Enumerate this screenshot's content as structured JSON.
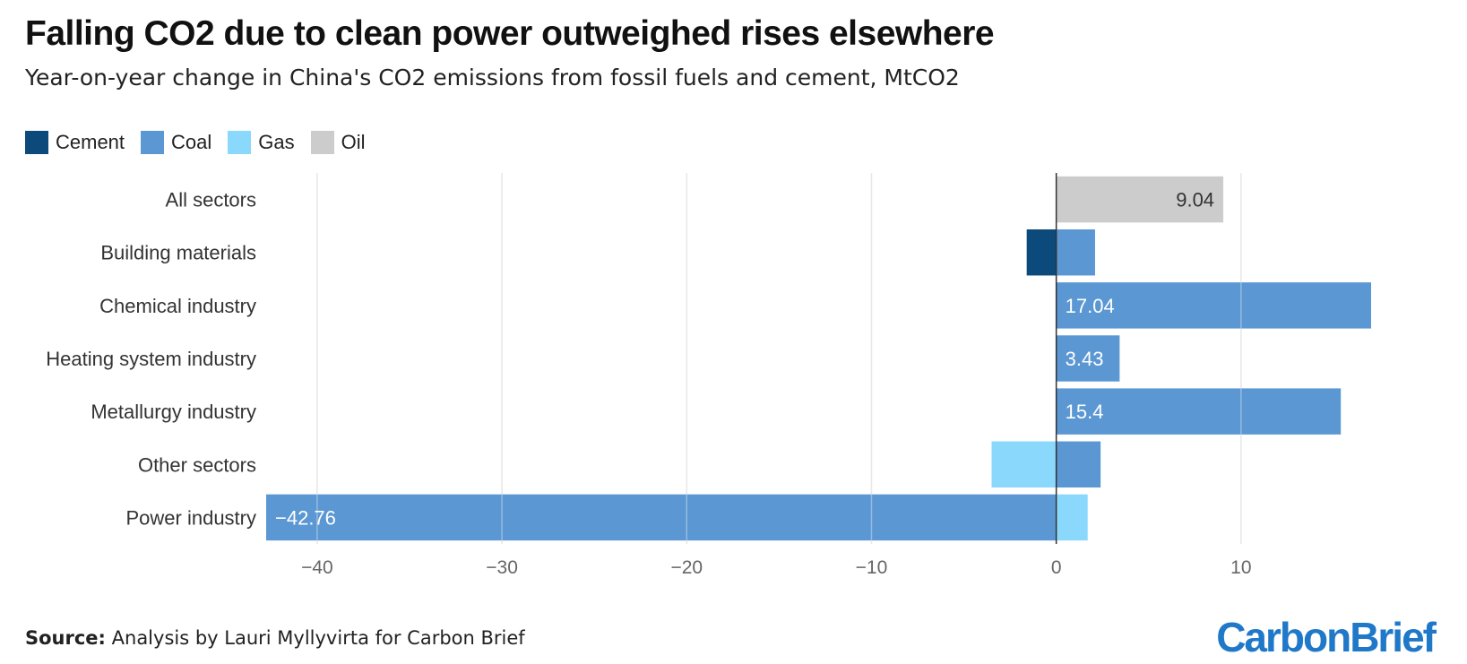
{
  "title": "Falling CO2 due to clean power outweighed rises elsewhere",
  "subtitle": "Year-on-year change in China's CO2 emissions from fossil fuels and cement, MtCO2",
  "legend": [
    {
      "label": "Cement",
      "color": "#0b4a7a"
    },
    {
      "label": "Coal",
      "color": "#5b97d2"
    },
    {
      "label": "Gas",
      "color": "#8ad8fb"
    },
    {
      "label": "Oil",
      "color": "#cccccc"
    }
  ],
  "source_label": "Source:",
  "source_text": "Analysis by Lauri Myllyvirta for Carbon Brief",
  "logo": "CarbonBrief",
  "chart_data": {
    "type": "bar",
    "orientation": "horizontal",
    "stacked": true,
    "categories": [
      "All sectors",
      "Building materials",
      "Chemical industry",
      "Heating system industry",
      "Metallurgy industry",
      "Other sectors",
      "Power industry"
    ],
    "series": [
      {
        "name": "Cement",
        "color": "#0b4a7a",
        "values": [
          0,
          -1.6,
          0,
          0,
          0,
          0,
          0
        ]
      },
      {
        "name": "Coal",
        "color": "#5b97d2",
        "values": [
          0,
          2.1,
          17.04,
          3.43,
          15.4,
          2.4,
          -42.76
        ]
      },
      {
        "name": "Gas",
        "color": "#8ad8fb",
        "values": [
          0,
          0,
          0,
          0,
          0,
          -3.5,
          1.7
        ]
      },
      {
        "name": "Oil",
        "color": "#cccccc",
        "values": [
          9.04,
          0,
          0,
          0,
          0,
          0,
          0
        ]
      }
    ],
    "data_labels": [
      {
        "category": "All sectors",
        "series": "Oil",
        "text": "9.04"
      },
      {
        "category": "Chemical industry",
        "series": "Coal",
        "text": "17.04"
      },
      {
        "category": "Heating system industry",
        "series": "Coal",
        "text": "3.43"
      },
      {
        "category": "Metallurgy industry",
        "series": "Coal",
        "text": "15.4"
      },
      {
        "category": "Power industry",
        "series": "Coal",
        "text": "−42.76"
      }
    ],
    "xlim": [
      -42.76,
      17.04
    ],
    "xticks": [
      -40,
      -30,
      -20,
      -10,
      0,
      10
    ],
    "xtick_labels": [
      "−40",
      "−30",
      "−20",
      "−10",
      "0",
      "10"
    ],
    "grid": true,
    "legend_position": "top-left"
  }
}
